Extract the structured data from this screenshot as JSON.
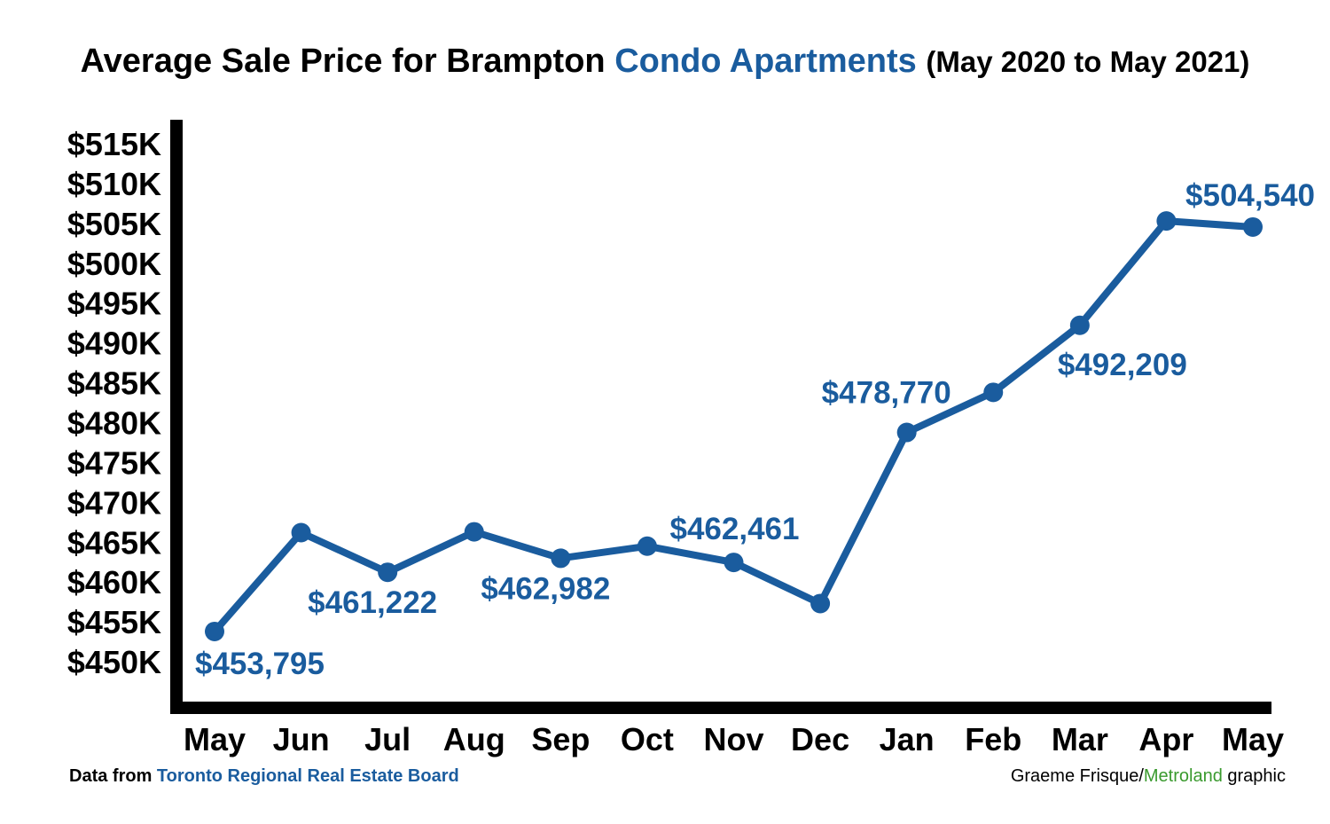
{
  "title": {
    "prefix": "Average Sale Price for Brampton",
    "accent": "Condo Apartments",
    "suffix": "(May 2020 to May 2021)"
  },
  "footer": {
    "source_prefix": "Data from",
    "source_name": "Toronto Regional Real Estate Board",
    "credit_author": "Graeme Frisque/",
    "credit_org": "Metroland",
    "credit_suffix": "graphic"
  },
  "colors": {
    "line": "#1a5c9e",
    "axis": "#000000",
    "accent_green": "#3a9a2e"
  },
  "chart_data": {
    "type": "line",
    "title": "Average Sale Price for Brampton Condo Apartments (May 2020 to May 2021)",
    "xlabel": "",
    "ylabel": "",
    "categories": [
      "May",
      "Jun",
      "Jul",
      "Aug",
      "Sep",
      "Oct",
      "Nov",
      "Dec",
      "Jan",
      "Feb",
      "Mar",
      "Apr",
      "May"
    ],
    "series": [
      {
        "values": [
          453795,
          466200,
          461222,
          466300,
          462982,
          464500,
          462461,
          457300,
          478770,
          483800,
          492209,
          505300,
          504540
        ]
      }
    ],
    "ylim": [
      445000,
      518000
    ],
    "yticks": [
      450000,
      455000,
      460000,
      465000,
      470000,
      475000,
      480000,
      485000,
      490000,
      495000,
      500000,
      505000,
      510000,
      515000
    ],
    "ytick_labels": [
      "$450K",
      "$455K",
      "$460K",
      "$465K",
      "$470K",
      "$475K",
      "$480K",
      "$485K",
      "$490K",
      "$495K",
      "$500K",
      "$505K",
      "$510K",
      "$515K"
    ],
    "data_labels": [
      {
        "index": 0,
        "text": "$453,795",
        "position": "below"
      },
      {
        "index": 2,
        "text": "$461,222",
        "position": "below"
      },
      {
        "index": 4,
        "text": "$462,982",
        "position": "below"
      },
      {
        "index": 6,
        "text": "$462,461",
        "position": "above"
      },
      {
        "index": 8,
        "text": "$478,770",
        "position": "above-left"
      },
      {
        "index": 10,
        "text": "$492,209",
        "position": "below"
      },
      {
        "index": 12,
        "text": "$504,540",
        "position": "above"
      }
    ],
    "grid": false,
    "legend": "none"
  }
}
